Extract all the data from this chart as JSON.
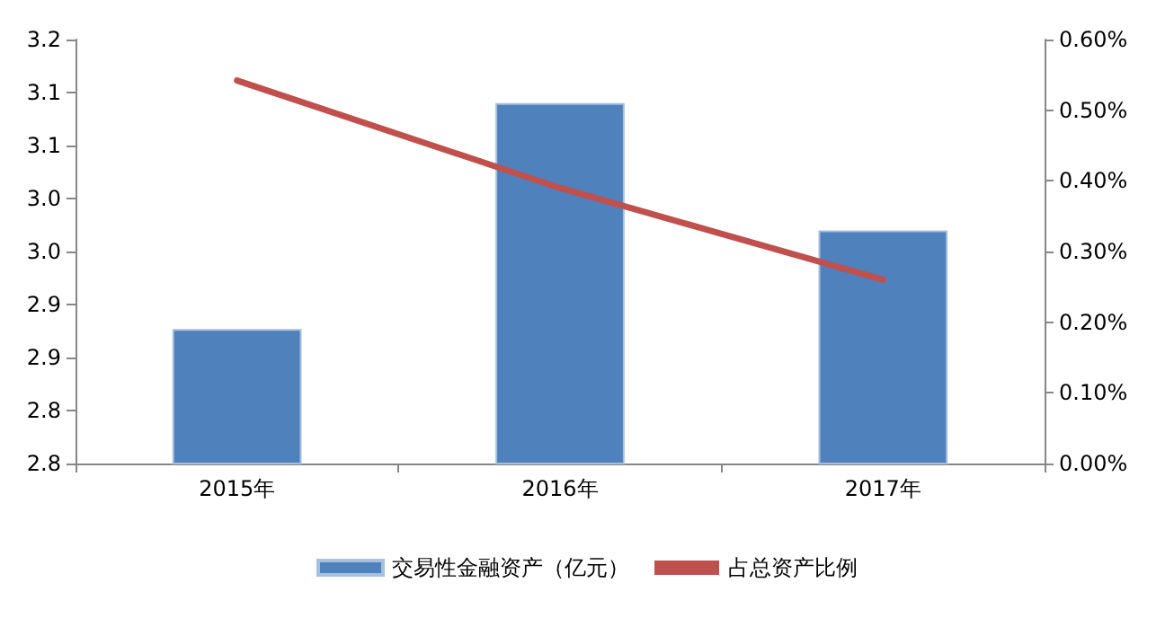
{
  "chart_data": {
    "type": "bar",
    "categories": [
      "2015年",
      "2016年",
      "2017年"
    ],
    "series": [
      {
        "name": "交易性金融资产（亿元）",
        "color": "#4f81bd",
        "values": [
          2.927,
          3.14,
          3.02
        ]
      },
      {
        "name": "占总资产比例",
        "type": "line",
        "axis": "y2",
        "color": "#c0504d",
        "values": [
          0.542,
          0.39,
          0.26
        ]
      }
    ],
    "ylim": [
      2.8,
      3.2
    ],
    "yticks": [
      {
        "value": 2.8,
        "label": "2.8"
      },
      {
        "value": 2.85,
        "label": "2.8"
      },
      {
        "value": 2.9,
        "label": "2.9"
      },
      {
        "value": 2.95,
        "label": "2.9"
      },
      {
        "value": 3.0,
        "label": "3.0"
      },
      {
        "value": 3.05,
        "label": "3.0"
      },
      {
        "value": 3.1,
        "label": "3.1"
      },
      {
        "value": 3.15,
        "label": "3.1"
      },
      {
        "value": 3.2,
        "label": "3.2"
      }
    ],
    "y2lim": [
      0,
      0.6
    ],
    "y2ticks": [
      {
        "value": 0,
        "label": "0.00%"
      },
      {
        "value": 0.1,
        "label": "0.10%"
      },
      {
        "value": 0.2,
        "label": "0.20%"
      },
      {
        "value": 0.3,
        "label": "0.30%"
      },
      {
        "value": 0.4,
        "label": "0.40%"
      },
      {
        "value": 0.5,
        "label": "0.50%"
      },
      {
        "value": 0.6,
        "label": "0.60%"
      }
    ],
    "grid": false,
    "legend": "bottom",
    "marker": "none"
  }
}
